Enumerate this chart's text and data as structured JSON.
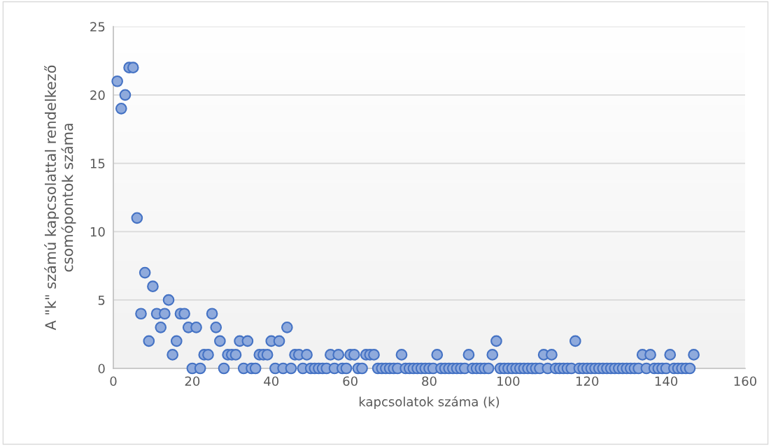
{
  "chart_data": {
    "type": "scatter",
    "xlabel": "kapcsolatok száma (k)",
    "ylabel": "A \"k\" számú kapcsolattal rendelkező\ncsomópontok száma",
    "x": [
      1,
      2,
      3,
      4,
      5,
      6,
      7,
      8,
      9,
      10,
      11,
      12,
      13,
      14,
      15,
      16,
      17,
      18,
      19,
      20,
      21,
      22,
      23,
      24,
      25,
      26,
      27,
      28,
      29,
      30,
      31,
      32,
      33,
      34,
      35,
      36,
      37,
      38,
      39,
      40,
      41,
      42,
      43,
      44,
      45,
      46,
      47,
      48,
      49,
      50,
      51,
      52,
      53,
      54,
      55,
      56,
      57,
      58,
      59,
      60,
      61,
      62,
      63,
      64,
      65,
      66,
      67,
      68,
      69,
      70,
      71,
      72,
      73,
      74,
      75,
      76,
      77,
      78,
      79,
      80,
      81,
      82,
      83,
      84,
      85,
      86,
      87,
      88,
      89,
      90,
      91,
      92,
      93,
      94,
      95,
      96,
      97,
      98,
      99,
      100,
      101,
      102,
      103,
      104,
      105,
      106,
      107,
      108,
      109,
      110,
      111,
      112,
      113,
      114,
      115,
      116,
      117,
      118,
      119,
      120,
      121,
      122,
      123,
      124,
      125,
      126,
      127,
      128,
      129,
      130,
      131,
      132,
      133,
      134,
      135,
      136,
      137,
      138,
      139,
      140,
      141,
      142,
      143,
      144,
      145,
      146,
      147
    ],
    "series": [
      {
        "color": "#4472c4",
        "values": [
          21,
          19,
          20,
          22,
          22,
          11,
          4,
          7,
          2,
          6,
          4,
          3,
          4,
          5,
          1,
          2,
          4,
          4,
          3,
          0,
          3,
          0,
          1,
          1,
          4,
          3,
          2,
          0,
          1,
          1,
          1,
          2,
          0,
          2,
          0,
          0,
          1,
          1,
          1,
          2,
          0,
          2,
          0,
          3,
          0,
          1,
          1,
          0,
          1,
          0,
          0,
          0,
          0,
          0,
          1,
          0,
          1,
          0,
          0,
          1,
          1,
          0,
          0,
          1,
          1,
          1,
          0,
          0,
          0,
          0,
          0,
          0,
          1,
          0,
          0,
          0,
          0,
          0,
          0,
          0,
          0,
          1,
          0,
          0,
          0,
          0,
          0,
          0,
          0,
          1,
          0,
          0,
          0,
          0,
          0,
          1,
          2,
          0,
          0,
          0,
          0,
          0,
          0,
          0,
          0,
          0,
          0,
          0,
          1,
          0,
          1,
          0,
          0,
          0,
          0,
          0,
          2,
          0,
          0,
          0,
          0,
          0,
          0,
          0,
          0,
          0,
          0,
          0,
          0,
          0,
          0,
          0,
          0,
          1,
          0,
          1,
          0,
          0,
          0,
          0,
          1,
          0,
          0,
          0,
          0,
          0,
          1
        ]
      }
    ],
    "xlim": [
      0,
      160
    ],
    "xticks": [
      0,
      20,
      40,
      60,
      80,
      100,
      120,
      140,
      160
    ],
    "ylim": [
      0,
      25
    ],
    "yticks": [
      0,
      5,
      10,
      15,
      20,
      25
    ],
    "grid": "y",
    "marker": "circle"
  }
}
